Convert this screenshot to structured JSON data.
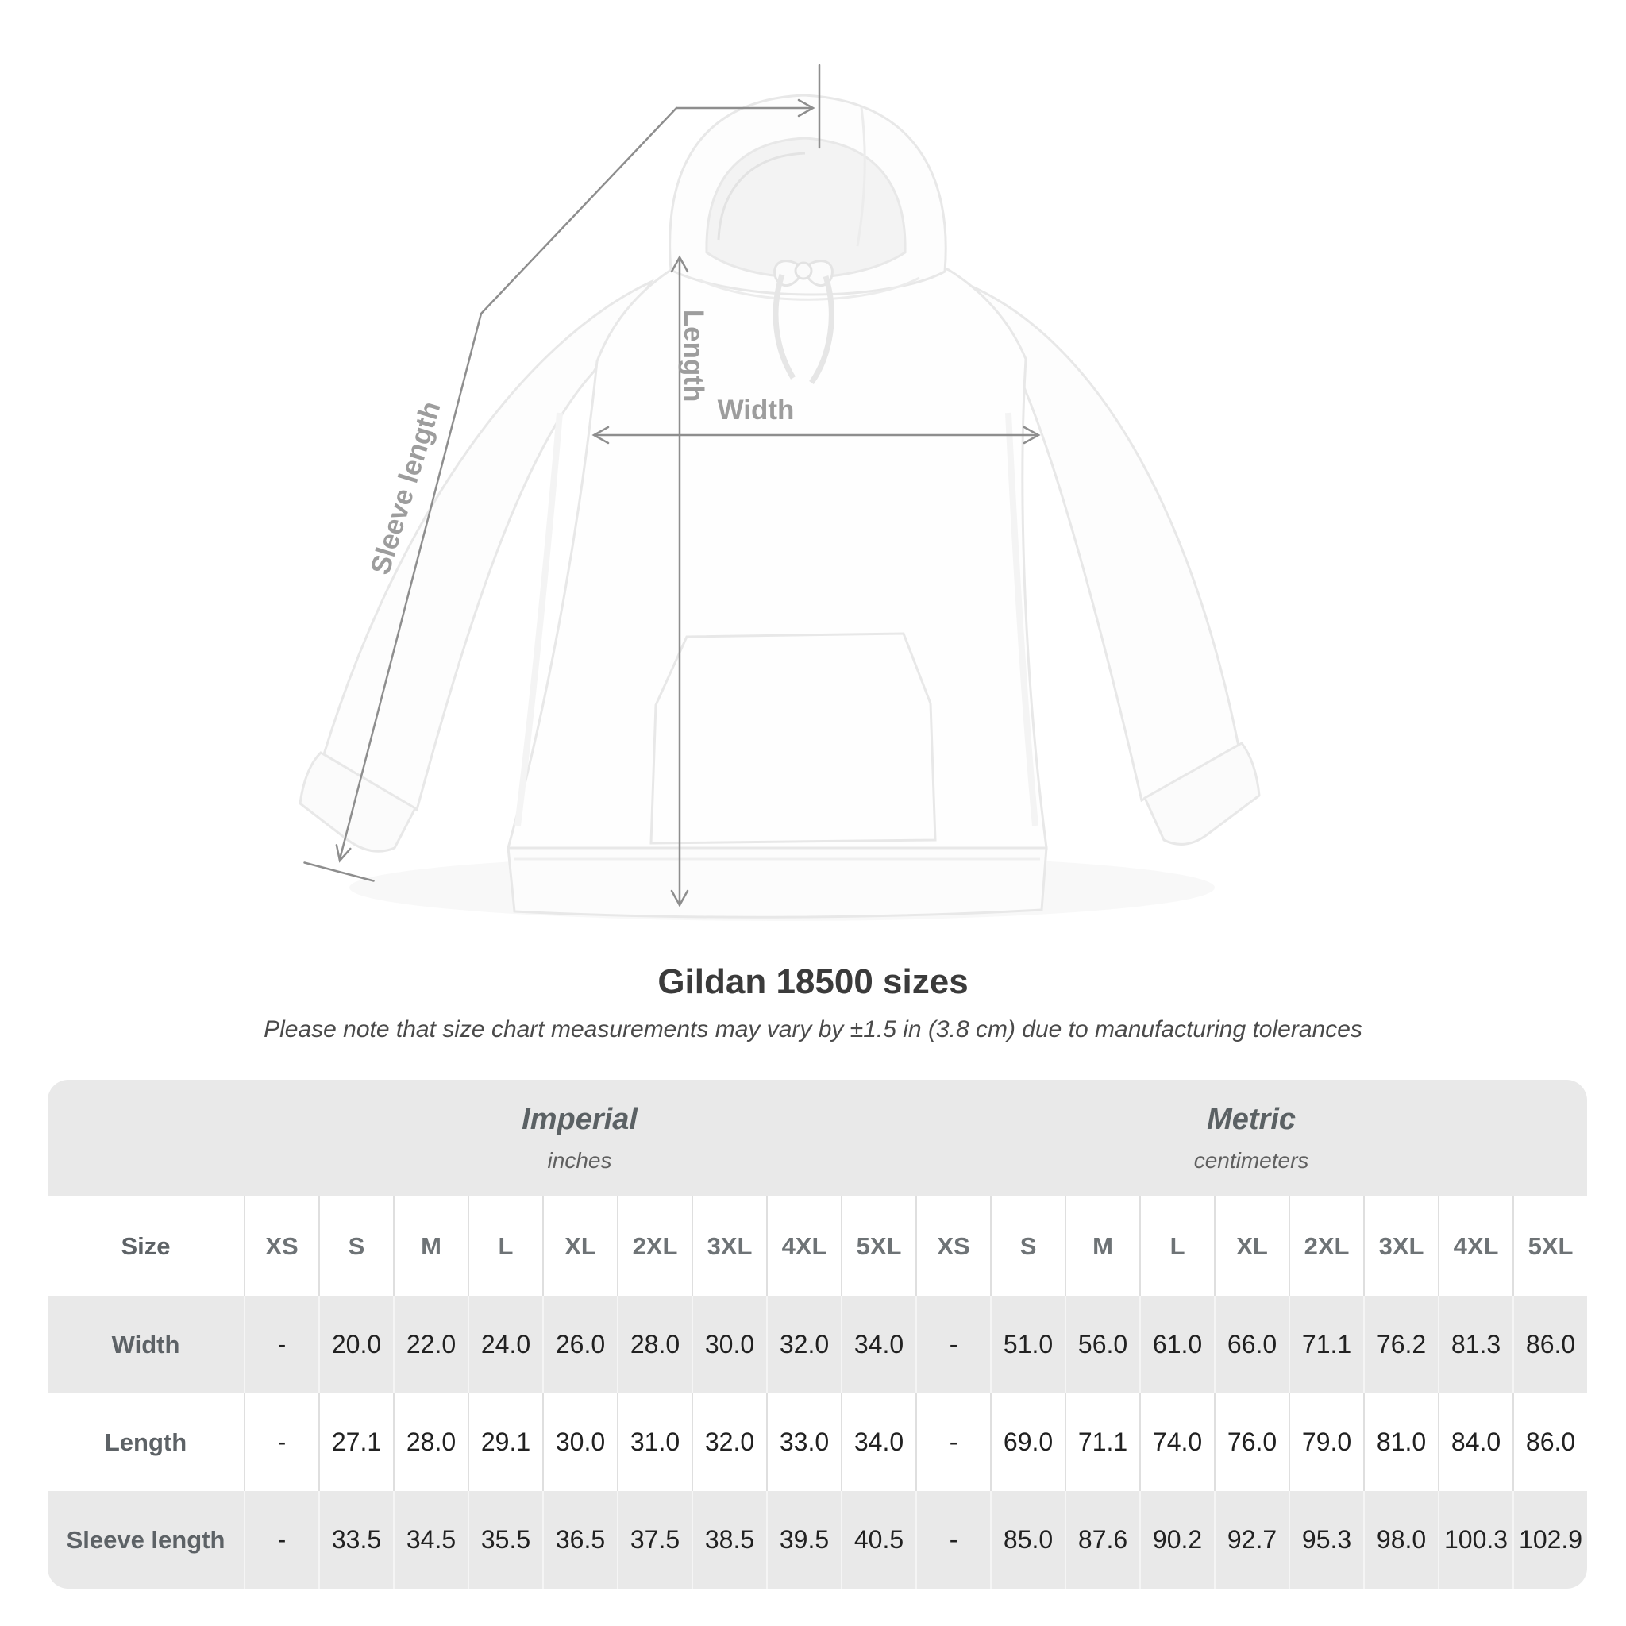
{
  "title": "Gildan 18500 sizes",
  "subtitle": "Please note that size chart measurements may vary by ±1.5 in (3.8 cm) due to manufacturing tolerances",
  "figure": {
    "description": "white pullover hoodie flat lay with measurement arrows",
    "labels": {
      "length": "Length",
      "width": "Width",
      "sleeve": "Sleeve length"
    }
  },
  "table": {
    "size_header": "Size",
    "sizes": [
      "XS",
      "S",
      "M",
      "L",
      "XL",
      "2XL",
      "3XL",
      "4XL",
      "5XL"
    ],
    "unit_groups": [
      {
        "label": "Imperial",
        "sublabel": "inches"
      },
      {
        "label": "Metric",
        "sublabel": "centimeters"
      }
    ],
    "rows": [
      {
        "label": "Width",
        "imperial": [
          "-",
          "20.0",
          "22.0",
          "24.0",
          "26.0",
          "28.0",
          "30.0",
          "32.0",
          "34.0"
        ],
        "metric": [
          "-",
          "51.0",
          "56.0",
          "61.0",
          "66.0",
          "71.1",
          "76.2",
          "81.3",
          "86.0"
        ]
      },
      {
        "label": "Length",
        "imperial": [
          "-",
          "27.1",
          "28.0",
          "29.1",
          "30.0",
          "31.0",
          "32.0",
          "33.0",
          "34.0"
        ],
        "metric": [
          "-",
          "69.0",
          "71.1",
          "74.0",
          "76.0",
          "79.0",
          "81.0",
          "84.0",
          "86.0"
        ]
      },
      {
        "label": "Sleeve length",
        "imperial": [
          "-",
          "33.5",
          "34.5",
          "35.5",
          "36.5",
          "37.5",
          "38.5",
          "39.5",
          "40.5"
        ],
        "metric": [
          "-",
          "85.0",
          "87.6",
          "90.2",
          "92.7",
          "95.3",
          "98.0",
          "100.3",
          "102.9"
        ]
      }
    ]
  },
  "colors": {
    "row_gray": "#e9e9e9",
    "divider_on_white": "#dfdfdf",
    "divider_on_gray": "#f5f5f5",
    "title_text": "#3b3b3b",
    "subtitle_text": "#4a4a4a",
    "unit_header_text": "#5b6164",
    "size_header_text": "#6e7376",
    "row_label_text": "#5d6266",
    "value_text": "#212121",
    "annotation_line": "#8e8e8e",
    "annotation_label": "#9d9d9d",
    "garment_outline": "#e8e8e8"
  }
}
